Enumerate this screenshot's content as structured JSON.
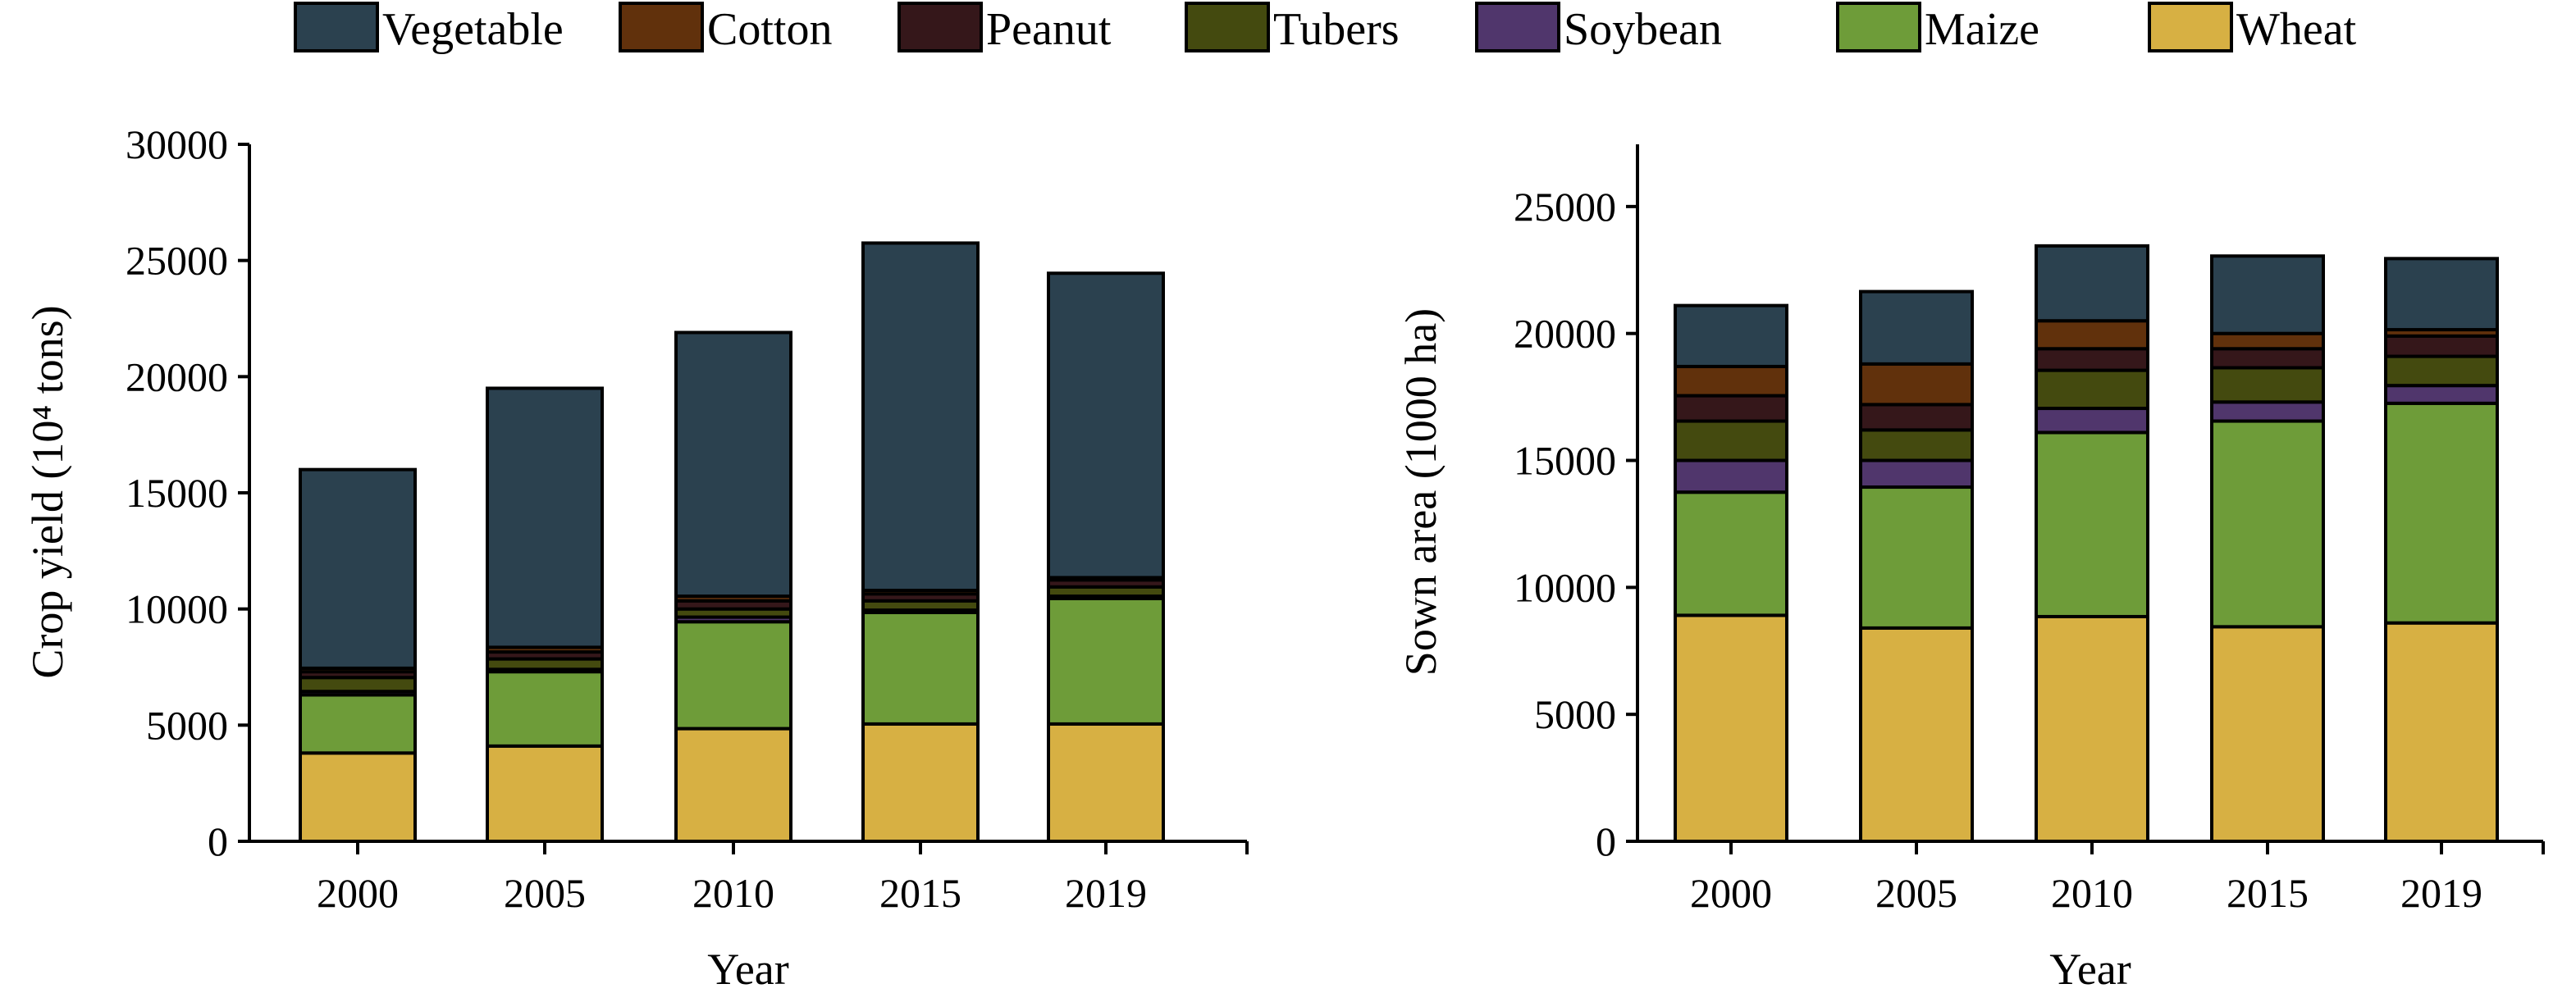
{
  "chart_data": [
    {
      "type": "bar",
      "stacked": true,
      "title": "",
      "xlabel": "Year",
      "ylabel": "Crop yield (10⁴ tons)",
      "ylim": [
        0,
        30000
      ],
      "yticks": [
        "0",
        "5000",
        "10000",
        "15000",
        "20000",
        "25000",
        "30000"
      ],
      "categories": [
        "2000",
        "2005",
        "2010",
        "2015",
        "2019"
      ],
      "series": [
        {
          "name": "Wheat",
          "values": [
            3800,
            4100,
            4850,
            5050,
            5050
          ]
        },
        {
          "name": "Maize",
          "values": [
            2500,
            3200,
            4600,
            4800,
            5400
          ]
        },
        {
          "name": "Soybean",
          "values": [
            150,
            100,
            200,
            100,
            100
          ]
        },
        {
          "name": "Tubers",
          "values": [
            600,
            450,
            350,
            400,
            400
          ]
        },
        {
          "name": "Peanut",
          "values": [
            250,
            300,
            350,
            300,
            300
          ]
        },
        {
          "name": "Cotton",
          "values": [
            150,
            200,
            200,
            150,
            100
          ]
        },
        {
          "name": "Vegetable",
          "values": [
            8550,
            11150,
            11350,
            14950,
            13100
          ]
        }
      ]
    },
    {
      "type": "bar",
      "stacked": true,
      "title": "",
      "xlabel": "Year",
      "ylabel": "Sown area (1000 ha)",
      "ylim": [
        0,
        27450
      ],
      "yticks": [
        "0",
        "5000",
        "10000",
        "15000",
        "20000",
        "25000"
      ],
      "categories": [
        "2000",
        "2005",
        "2010",
        "2015",
        "2019"
      ],
      "series": [
        {
          "name": "Wheat",
          "values": [
            8900,
            8400,
            8850,
            8450,
            8600
          ]
        },
        {
          "name": "Maize",
          "values": [
            4850,
            5550,
            7250,
            8100,
            8650
          ]
        },
        {
          "name": "Soybean",
          "values": [
            1250,
            1050,
            950,
            750,
            700
          ]
        },
        {
          "name": "Tubers",
          "values": [
            1550,
            1200,
            1500,
            1350,
            1150
          ]
        },
        {
          "name": "Peanut",
          "values": [
            1000,
            1000,
            850,
            750,
            800
          ]
        },
        {
          "name": "Cotton",
          "values": [
            1150,
            1600,
            1100,
            600,
            250
          ]
        },
        {
          "name": "Vegetable",
          "values": [
            2400,
            2850,
            2950,
            3050,
            2800
          ]
        }
      ]
    }
  ],
  "legend": {
    "placement": "top",
    "items": [
      "Vegetable",
      "Cotton",
      "Peanut",
      "Tubers",
      "Soybean",
      "Maize",
      "Wheat"
    ]
  },
  "colors": {
    "Vegetable": "#2B414F",
    "Cotton": "#61310C",
    "Peanut": "#35171A",
    "Tubers": "#444A0F",
    "Soybean": "#50366C",
    "Maize": "#6E9C39",
    "Wheat": "#D7B043"
  }
}
